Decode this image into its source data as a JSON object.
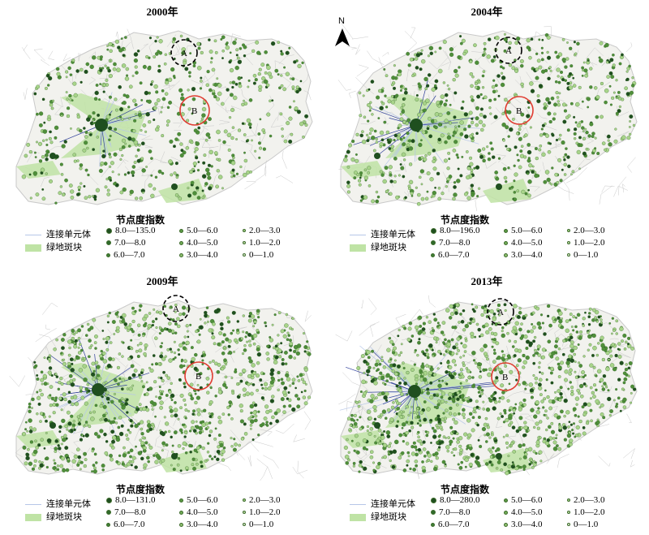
{
  "colors": {
    "background": "#ffffff",
    "boundary": "#c9c9c9",
    "land": "#f2f2ee",
    "connection_line": "#b7c7e8",
    "connection_line_dark": "#2f3f9a",
    "green_patch": "#bfe3a5",
    "node_dark": "#1f4f1f",
    "node_mid": "#4f8f3a",
    "node_light": "#a8d48a",
    "circle_a": "#000000",
    "circle_b": "#e03c31"
  },
  "north_arrow": {
    "label": "N",
    "icon": "north-arrow-icon"
  },
  "panels": [
    {
      "year": "2000年",
      "legend": {
        "title": "节点度指数",
        "line_label": "连接单元体",
        "patch_label": "绿地斑块",
        "classes": [
          "8.0—135.0",
          "7.0—8.0",
          "6.0—7.0",
          "5.0—6.0",
          "4.0—5.0",
          "3.0—4.0",
          "2.0—3.0",
          "1.0—2.0",
          "0—1.0"
        ]
      },
      "circle_a_label": "A",
      "circle_b_label": "B"
    },
    {
      "year": "2004年",
      "legend": {
        "title": "节点度指数",
        "line_label": "连接单元体",
        "patch_label": "绿地斑块",
        "classes": [
          "8.0—196.0",
          "7.0—8.0",
          "6.0—7.0",
          "5.0—6.0",
          "4.0—5.0",
          "3.0—4.0",
          "2.0—3.0",
          "1.0—2.0",
          "0—1.0"
        ]
      },
      "circle_a_label": "A",
      "circle_b_label": "B"
    },
    {
      "year": "2009年",
      "legend": {
        "title": "节点度指数",
        "line_label": "连接单元体",
        "patch_label": "绿地斑块",
        "classes": [
          "8.0—131.0",
          "7.0—8.0",
          "6.0—7.0",
          "5.0—6.0",
          "4.0—5.0",
          "3.0—4.0",
          "2.0—3.0",
          "1.0—2.0",
          "0—1.0"
        ]
      },
      "circle_a_label": "A",
      "circle_b_label": "B"
    },
    {
      "year": "2013年",
      "legend": {
        "title": "节点度指数",
        "line_label": "连接单元体",
        "patch_label": "绿地斑块",
        "classes": [
          "8.0—280.0",
          "7.0—8.0",
          "6.0—7.0",
          "5.0—6.0",
          "4.0—5.0",
          "3.0—4.0",
          "2.0—3.0",
          "1.0—2.0",
          "0—1.0"
        ]
      },
      "circle_a_label": "A",
      "circle_b_label": "B"
    }
  ]
}
